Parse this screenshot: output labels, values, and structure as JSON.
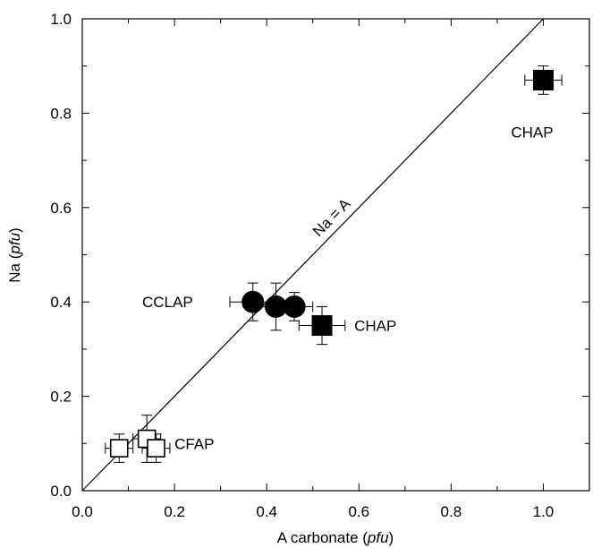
{
  "chart_data": {
    "type": "scatter",
    "xlabel": {
      "prefix": "A carbonate (",
      "unit": "pfu",
      "suffix": ")"
    },
    "ylabel": {
      "prefix": "Na (",
      "unit": "pfu",
      "suffix": ")"
    },
    "xlim": [
      0.0,
      1.1
    ],
    "ylim": [
      0.0,
      1.0
    ],
    "x_ticks": [
      0.0,
      0.2,
      0.4,
      0.6,
      0.8,
      1.0
    ],
    "y_ticks": [
      0.0,
      0.2,
      0.4,
      0.6,
      0.8,
      1.0
    ],
    "x_tick_labels": [
      "0.0",
      "0.2",
      "0.4",
      "0.6",
      "0.8",
      "1.0"
    ],
    "y_tick_labels": [
      "0.0",
      "0.2",
      "0.4",
      "0.6",
      "0.8",
      "1.0"
    ],
    "grid": false,
    "reference_line": {
      "label": "Na = A",
      "from": [
        0.0,
        0.0
      ],
      "to": [
        1.0,
        1.0
      ]
    },
    "series": [
      {
        "marker": "filled-circle",
        "color": "#000000",
        "points": [
          {
            "x": 0.37,
            "y": 0.4,
            "xerr": 0.05,
            "yerr": 0.04
          },
          {
            "x": 0.42,
            "y": 0.39,
            "xerr": 0.04,
            "yerr": 0.05
          },
          {
            "x": 0.46,
            "y": 0.39,
            "xerr": 0.04,
            "yerr": 0.03
          }
        ]
      },
      {
        "marker": "filled-square",
        "color": "#000000",
        "points": [
          {
            "x": 0.52,
            "y": 0.35,
            "xerr": 0.05,
            "yerr": 0.04
          },
          {
            "x": 1.0,
            "y": 0.87,
            "xerr": 0.04,
            "yerr": 0.03
          }
        ]
      },
      {
        "marker": "open-square",
        "color": "#000000",
        "points": [
          {
            "x": 0.08,
            "y": 0.09,
            "xerr": 0.03,
            "yerr": 0.03
          },
          {
            "x": 0.14,
            "y": 0.11,
            "xerr": 0.03,
            "yerr": 0.05
          },
          {
            "x": 0.16,
            "y": 0.09,
            "xerr": 0.03,
            "yerr": 0.03
          }
        ]
      }
    ],
    "annotations": [
      {
        "text": "CCLAP",
        "x": 0.13,
        "y": 0.4
      },
      {
        "text": "CHAP",
        "x": 0.59,
        "y": 0.35
      },
      {
        "text": "CHAP",
        "x": 0.93,
        "y": 0.76
      },
      {
        "text": "CFAP",
        "x": 0.2,
        "y": 0.1
      }
    ]
  }
}
